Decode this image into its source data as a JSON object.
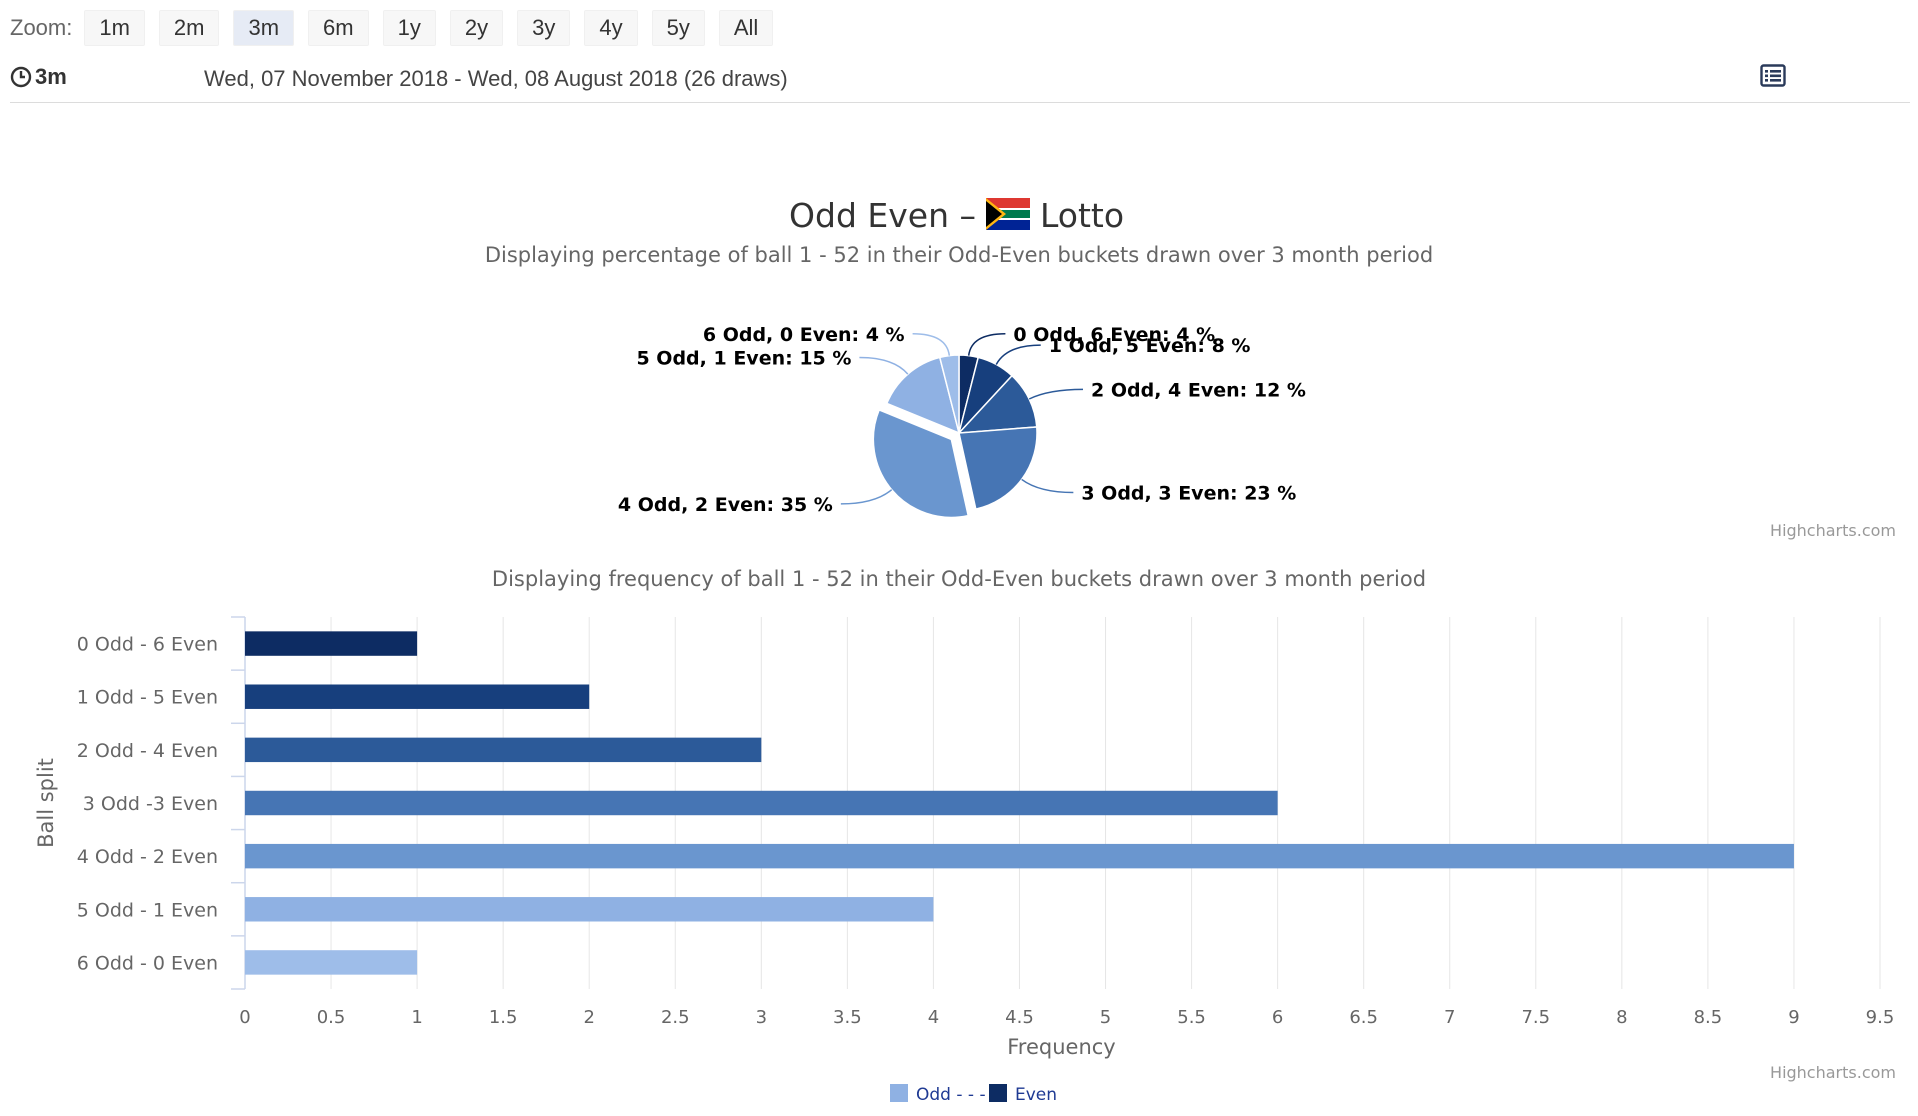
{
  "toolbar": {
    "zoom_label": "Zoom:",
    "zoom_buttons": [
      "1m",
      "2m",
      "3m",
      "6m",
      "1y",
      "2y",
      "3y",
      "4y",
      "5y",
      "All"
    ],
    "active_zoom": "3m"
  },
  "info": {
    "period": "3m",
    "range": "Wed, 07 November 2018 - Wed, 08 August 2018 (26 draws)"
  },
  "credits": "Highcharts.com",
  "colors": {
    "c0": "#0d2c63",
    "c1": "#173f7d",
    "c2": "#2c5a99",
    "c3": "#4675b4",
    "c4": "#6a96cf",
    "c5": "#8fb1e3",
    "c6": "#9ebde9",
    "legend_text": "#1f3a93"
  },
  "chart_data": [
    {
      "type": "pie",
      "title_prefix": "Odd Even –",
      "title_suffix": "Lotto",
      "subtitle": "Displaying percentage of ball 1 - 52 in their Odd-Even buckets drawn over 3 month period",
      "slices": [
        {
          "label": "0 Odd, 6 Even: 4 %",
          "value": 4
        },
        {
          "label": "1 Odd, 5 Even: 8 %",
          "value": 8
        },
        {
          "label": "2 Odd, 4 Even: 12 %",
          "value": 12
        },
        {
          "label": "3 Odd, 3 Even: 23 %",
          "value": 23
        },
        {
          "label": "4 Odd, 2 Even: 35 %",
          "value": 35,
          "sliced": true
        },
        {
          "label": "5 Odd, 1 Even: 15 %",
          "value": 15
        },
        {
          "label": "6 Odd, 0 Even: 4 %",
          "value": 4
        }
      ]
    },
    {
      "type": "bar",
      "subtitle": "Displaying frequency of ball 1 - 52 in their Odd-Even buckets drawn over 3 month period",
      "categories": [
        "0 Odd - 6 Even",
        "1 Odd - 5 Even",
        "2 Odd - 4 Even",
        "3 Odd -3 Even",
        "4 Odd - 2 Even",
        "5 Odd - 1 Even",
        "6 Odd - 0 Even"
      ],
      "values": [
        1,
        2,
        3,
        6,
        9,
        4,
        1
      ],
      "xlabel": "Frequency",
      "ylabel": "Ball split",
      "xlim": [
        0,
        9.5
      ],
      "ticks": [
        0,
        0.5,
        1,
        1.5,
        2,
        2.5,
        3,
        3.5,
        4,
        4.5,
        5,
        5.5,
        6,
        6.5,
        7,
        7.5,
        8,
        8.5,
        9,
        9.5
      ],
      "grid": true,
      "legend": {
        "position": "bottom-center",
        "items": [
          {
            "name": "Odd - - -"
          },
          {
            "name": "Even"
          }
        ]
      }
    }
  ]
}
